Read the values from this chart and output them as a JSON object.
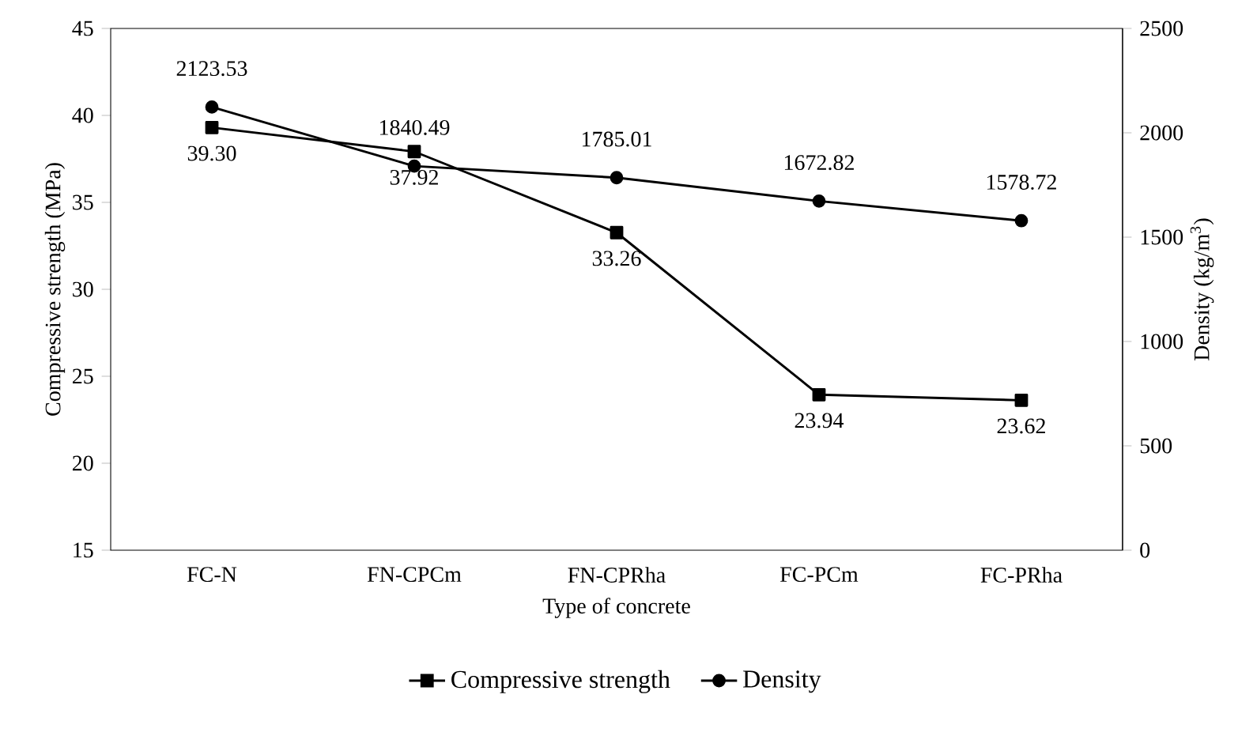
{
  "chart_data": {
    "type": "line",
    "xlabel": "Type of concrete",
    "ylabel": "Compressive strength (MPa)",
    "y2label": "Density (kg/m$^{3}$)",
    "categories": [
      "FC-N",
      "FN-CPCm",
      "FN-CPRha",
      "FC-PCm",
      "FC-PRha"
    ],
    "ylim": [
      15,
      45
    ],
    "yticks": [
      15,
      20,
      25,
      30,
      35,
      40,
      45
    ],
    "y2lim": [
      0,
      2500
    ],
    "y2ticks": [
      0,
      500,
      1000,
      1500,
      2000,
      2500
    ],
    "legend": "bottom",
    "line_style": "solid",
    "series": [
      {
        "name": "Compressive strength",
        "color": "#000000",
        "marker": "square",
        "values": [
          39.3,
          37.92,
          33.26,
          23.94,
          23.62
        ],
        "value_labels": [
          "39.30",
          "37.92",
          "33.26",
          "23.94",
          "23.62"
        ]
      },
      {
        "name": "Density",
        "color": "#000000",
        "marker": "circle",
        "axis": "y2",
        "values": [
          2123.53,
          1840.49,
          1785.01,
          1672.82,
          1578.72
        ],
        "value_labels": [
          "2123.53",
          "1840.49",
          "1785.01",
          "1672.82",
          "1578.72"
        ]
      }
    ]
  }
}
